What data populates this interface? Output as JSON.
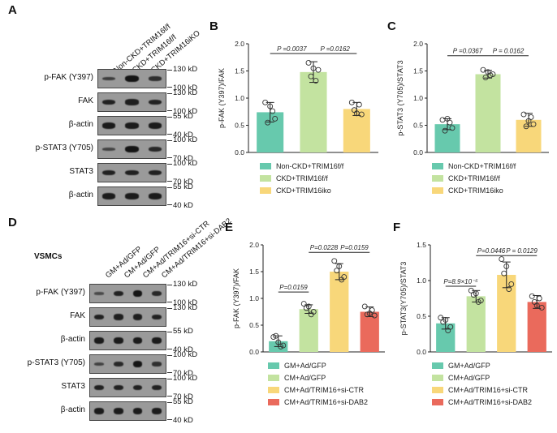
{
  "panels": {
    "A": {
      "letter": "A",
      "lanes": [
        "Non-CKD+TRIM16f/f",
        "CKD+TRIM16f/f",
        "CKD+TRIM16iKO"
      ],
      "blots": [
        {
          "label": "p-FAK (Y397)",
          "kd_top": "130 kD",
          "kd_bottom": "100 kD"
        },
        {
          "label": "FAK",
          "kd_top": "130 kD",
          "kd_bottom": "100 kD"
        },
        {
          "label": "β-actin",
          "kd_top": "55 kD",
          "kd_bottom": "40 kD"
        },
        {
          "label": "p-STAT3 (Y705)",
          "kd_top": "100 kD",
          "kd_bottom": "70 kD"
        },
        {
          "label": "STAT3",
          "kd_top": "100 kD",
          "kd_bottom": "70 kD"
        },
        {
          "label": "β-actin",
          "kd_top": "55 kD",
          "kd_bottom": "40 kD"
        }
      ]
    },
    "D": {
      "letter": "D",
      "cell_label": "VSMCs",
      "lanes": [
        "GM+Ad/GFP",
        "CM+Ad/GFP",
        "CM+Ad/TRIM16+si-CTR",
        "CM+Ad/TRIM16+si-DAB2"
      ],
      "blots": [
        {
          "label": "p-FAK (Y397)",
          "kd_top": "130 kD",
          "kd_bottom": "100 kD"
        },
        {
          "label": "FAK",
          "kd_top": "130 kD",
          "kd_bottom": ""
        },
        {
          "label": "β-actin",
          "kd_top": "55 kD",
          "kd_bottom": "40 kD"
        },
        {
          "label": "p-STAT3 (Y705)",
          "kd_top": "100 kD",
          "kd_bottom": "70 kD"
        },
        {
          "label": "STAT3",
          "kd_top": "100 kD",
          "kd_bottom": "70 kD"
        },
        {
          "label": "β-actin",
          "kd_top": "55 kD",
          "kd_bottom": "40 kD"
        }
      ]
    },
    "B_letter": "B",
    "C_letter": "C",
    "E_letter": "E",
    "F_letter": "F"
  },
  "colors": {
    "teal": "#67c9ad",
    "lightgreen": "#c3e3a0",
    "yellow": "#f8d77a",
    "red": "#ea6a5c"
  },
  "chart_data": [
    {
      "id": "B",
      "type": "bar",
      "categories": [
        "Non-CKD+TRIM16f/f",
        "CKD+TRIM16f/f",
        "CKD+TRIM16iKO"
      ],
      "values": [
        0.74,
        1.48,
        0.8
      ],
      "errors": [
        0.18,
        0.19,
        0.12
      ],
      "points": [
        [
          0.92,
          0.62,
          0.55,
          0.76,
          0.85
        ],
        [
          1.65,
          1.52,
          1.4,
          1.32,
          1.55
        ],
        [
          0.92,
          0.7,
          0.78,
          0.88,
          0.72
        ]
      ],
      "ylabel": "p-FAK (Y397)/FAK",
      "ylim": [
        0,
        2.0
      ],
      "yticks": [
        "0.0",
        "0.5",
        "1.0",
        "1.5",
        "2.0"
      ],
      "annotations": [
        "P =0.0037",
        "P =0.0162"
      ],
      "legend": [
        "Non-CKD+TRIM16f/f",
        "CKD+TRIM16f/f",
        "CKD+TRIM16iko"
      ]
    },
    {
      "id": "C",
      "type": "bar",
      "categories": [
        "Non-CKD+TRIM16f/f",
        "CKD+TRIM16f/f",
        "CKD+TRIM16iKO"
      ],
      "values": [
        0.52,
        1.44,
        0.6
      ],
      "errors": [
        0.1,
        0.07,
        0.12
      ],
      "points": [
        [
          0.6,
          0.45,
          0.4,
          0.55,
          0.62
        ],
        [
          1.52,
          1.44,
          1.38,
          1.42,
          1.48
        ],
        [
          0.7,
          0.52,
          0.48,
          0.65,
          0.58
        ]
      ],
      "ylabel": "p-STAT3 (Y705)/STAT3",
      "ylim": [
        0,
        2.0
      ],
      "yticks": [
        "0.0",
        "0.5",
        "1.0",
        "1.5",
        "2.0"
      ],
      "annotations": [
        "P =0.0367",
        "P = 0.0162"
      ],
      "legend": [
        "Non-CKD+TRIM16f/f",
        "CKD+TRIM16f/f",
        "CKD+TRIM16iko"
      ]
    },
    {
      "id": "E",
      "type": "bar",
      "categories": [
        "GM+Ad/GFP",
        "CM+Ad/GFP",
        "CM+Ad/TRIM16+si-CTR",
        "CM+Ad/TRIM16+si-DAB2"
      ],
      "values": [
        0.2,
        0.8,
        1.5,
        0.75
      ],
      "errors": [
        0.1,
        0.08,
        0.15,
        0.09
      ],
      "points": [
        [
          0.28,
          0.12,
          0.3,
          0.1,
          0.18
        ],
        [
          0.9,
          0.75,
          0.82,
          0.7,
          0.85
        ],
        [
          1.7,
          1.4,
          1.52,
          1.35,
          1.6
        ],
        [
          0.85,
          0.68,
          0.7,
          0.78,
          0.72
        ]
      ],
      "ylabel": "p-FAK (Y397)/FAK",
      "ylim": [
        0,
        2.0
      ],
      "yticks": [
        "0.0",
        "0.5",
        "1.0",
        "1.5",
        "2.0"
      ],
      "annotations": [
        "P=0.0228",
        "P=0.0159",
        "P=0.0159"
      ],
      "legend": [
        "GM+Ad/GFP",
        "CM+Ad/GFP",
        "CM+Ad/TRIM16+si-CTR",
        "CM+Ad/TRIM16+si-DAB2"
      ]
    },
    {
      "id": "F",
      "type": "bar",
      "categories": [
        "GM+Ad/GFP",
        "CM+Ad/GFP",
        "CM+Ad/TRIM16+si-CTR",
        "CM+Ad/TRIM16+si-DAB2"
      ],
      "values": [
        0.4,
        0.78,
        1.08,
        0.7
      ],
      "errors": [
        0.08,
        0.08,
        0.18,
        0.09
      ],
      "points": [
        [
          0.48,
          0.35,
          0.42,
          0.3,
          0.45
        ],
        [
          0.86,
          0.72,
          0.8,
          0.7,
          0.82
        ],
        [
          1.3,
          0.95,
          1.1,
          0.88,
          1.2
        ],
        [
          0.78,
          0.62,
          0.7,
          0.75,
          0.65
        ]
      ],
      "ylabel": "p-STAT3(Y705)/STAT3",
      "ylim": [
        0,
        1.5
      ],
      "yticks": [
        "0.0",
        "0.5",
        "1.0",
        "1.5"
      ],
      "annotations": [
        "P=0.0446",
        "P = 0.0129",
        "P=8.9×10⁻⁵"
      ],
      "legend": [
        "GM+Ad/GFP",
        "CM+Ad/GFP",
        "CM+Ad/TRIM16+si-CTR",
        "CM+Ad/TRIM16+si-DAB2"
      ]
    }
  ]
}
